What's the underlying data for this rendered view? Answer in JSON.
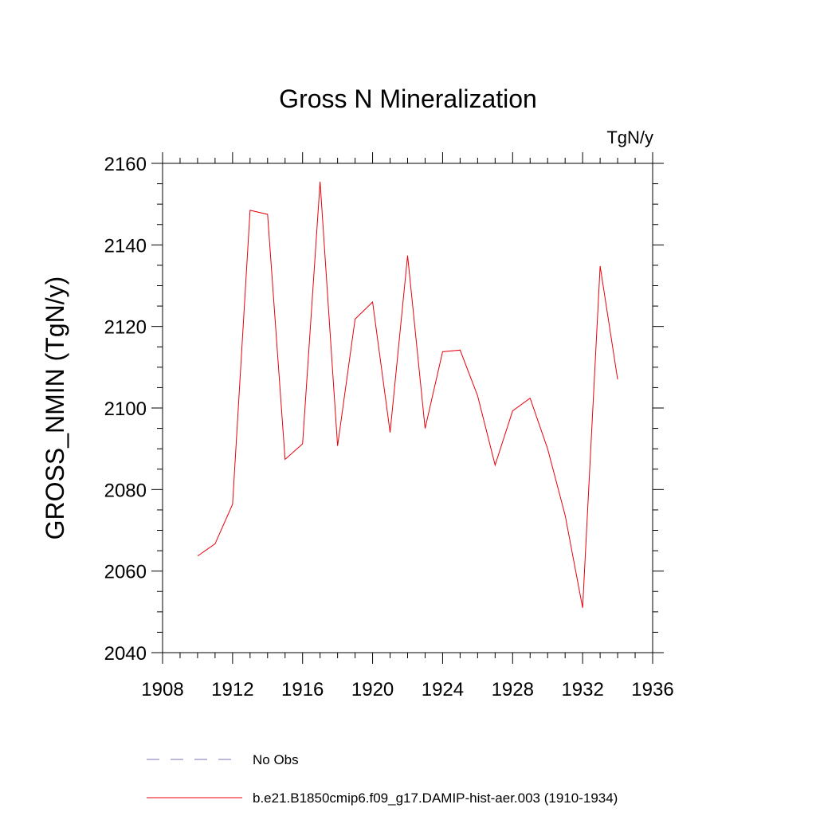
{
  "chart_data": {
    "type": "line",
    "title": "Gross N Mineralization",
    "units_label": "TgN/y",
    "ylabel": "GROSS_NMIN  (TgN/y)",
    "xlabel": "",
    "xlim": [
      1908,
      1936
    ],
    "ylim": [
      2040,
      2160
    ],
    "x_ticks": [
      1908,
      1912,
      1916,
      1920,
      1924,
      1928,
      1932,
      1936
    ],
    "y_ticks": [
      2040,
      2060,
      2080,
      2100,
      2120,
      2140,
      2160
    ],
    "x_tick_labels": [
      "1908",
      "1912",
      "1916",
      "1920",
      "1924",
      "1928",
      "1932",
      "1936"
    ],
    "y_tick_labels": [
      "2040",
      "2060",
      "2080",
      "2100",
      "2120",
      "2140",
      "2160"
    ],
    "grid": false,
    "legend_placement": "bottom",
    "series": [
      {
        "name": "b.e21.B1850cmip6.f09_g17.DAMIP-hist-aer.003 (1910-1934)",
        "color": "#e8000b",
        "style": "solid",
        "x": [
          1910,
          1911,
          1912,
          1913,
          1914,
          1915,
          1916,
          1917,
          1918,
          1919,
          1920,
          1921,
          1922,
          1923,
          1924,
          1925,
          1926,
          1927,
          1928,
          1929,
          1930,
          1931,
          1932,
          1933,
          1934
        ],
        "y": [
          2063.7,
          2066.7,
          2076.4,
          2148.5,
          2147.5,
          2087.4,
          2091.2,
          2155.5,
          2090.7,
          2121.8,
          2126.0,
          2094.0,
          2137.4,
          2095.0,
          2113.8,
          2114.2,
          2103.0,
          2086.0,
          2099.3,
          2102.4,
          2090.0,
          2073.7,
          2051.0,
          2134.8,
          2107.0
        ]
      }
    ],
    "legend": [
      {
        "label": "No Obs",
        "color": "#7b6fb0",
        "style": "dashed"
      },
      {
        "label": "b.e21.B1850cmip6.f09_g17.DAMIP-hist-aer.003 (1910-1934)",
        "color": "#e8000b",
        "style": "solid"
      }
    ]
  }
}
